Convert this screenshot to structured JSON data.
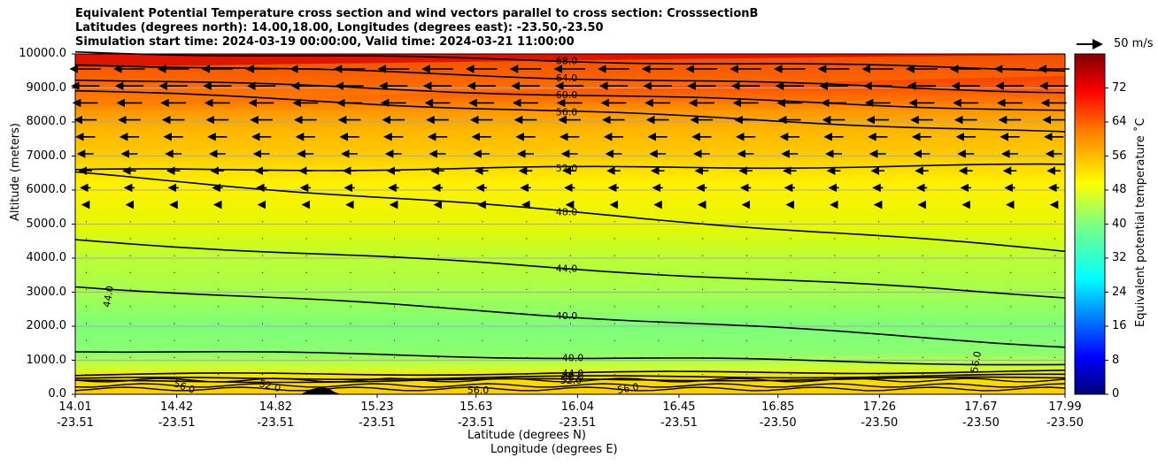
{
  "chart_data": {
    "type": "heatmap",
    "title_lines": [
      "Equivalent Potential Temperature cross section and wind vectors parallel to cross section: CrosssectionB",
      "Latitudes (degrees north): 14.00,18.00, Longitudes (degrees east): -23.50,-23.50",
      "Simulation start time: 2024-03-19 00:00:00, Valid time: 2024-03-21 11:00:00"
    ],
    "ylabel": "Altitude (meters)",
    "xlabel_lat": "Latitude (degrees N)",
    "xlabel_lon": "Longitude (degrees E)",
    "ylim": [
      0,
      10000
    ],
    "y_ticks": [
      "0.0",
      "1000.0",
      "2000.0",
      "3000.0",
      "4000.0",
      "5000.0",
      "6000.0",
      "7000.0",
      "8000.0",
      "9000.0",
      "10000.0"
    ],
    "x_ticks": [
      {
        "lat": "14.01",
        "lon": "-23.51"
      },
      {
        "lat": "14.42",
        "lon": "-23.51"
      },
      {
        "lat": "14.82",
        "lon": "-23.51"
      },
      {
        "lat": "15.23",
        "lon": "-23.51"
      },
      {
        "lat": "15.63",
        "lon": "-23.51"
      },
      {
        "lat": "16.04",
        "lon": "-23.51"
      },
      {
        "lat": "16.45",
        "lon": "-23.51"
      },
      {
        "lat": "16.85",
        "lon": "-23.50"
      },
      {
        "lat": "17.26",
        "lon": "-23.50"
      },
      {
        "lat": "17.67",
        "lon": "-23.50"
      },
      {
        "lat": "17.99",
        "lon": "-23.50"
      }
    ],
    "colorbar": {
      "label": "Equivalent potential temperature ˚C",
      "range": [
        0,
        80
      ],
      "ticks": [
        "0",
        "8",
        "16",
        "24",
        "32",
        "40",
        "48",
        "56",
        "64",
        "72"
      ]
    },
    "reference_vector": "50 m/s",
    "contours": [
      {
        "level": 68,
        "label": "68.0",
        "alt": 9800
      },
      {
        "level": 64,
        "label": "64.0",
        "alt": 9300
      },
      {
        "level": 60,
        "label": "60.0",
        "alt": 8800
      },
      {
        "level": 56,
        "label": "56.0",
        "alt": 8300
      },
      {
        "level": 52,
        "label": "52.0",
        "alt": 6650
      },
      {
        "level": 48,
        "label": "48.0",
        "alt": 5350
      },
      {
        "level": 44,
        "label": "44.0",
        "alt": 3700
      },
      {
        "level": 40,
        "label": "40.0",
        "alt": 2300
      },
      {
        "level": 40,
        "label": "40.0",
        "alt": 1080
      },
      {
        "level": 44,
        "label": "44.0",
        "alt": 620
      },
      {
        "level": 48,
        "label": "48.0",
        "alt": 500
      },
      {
        "level": 52,
        "label": "52.0",
        "alt": 420
      },
      {
        "level": 56,
        "label": "56.0",
        "alt": 60
      },
      {
        "level": 56,
        "label": "56.0",
        "alt": 60
      },
      {
        "level": 56,
        "label": "56.0",
        "alt": 900
      },
      {
        "level": 44,
        "label": "44.0",
        "alt": 3000
      },
      {
        "level": 52,
        "label": "52.0",
        "alt": 200
      },
      {
        "level": 56,
        "label": "56.0",
        "alt": 100
      }
    ]
  }
}
